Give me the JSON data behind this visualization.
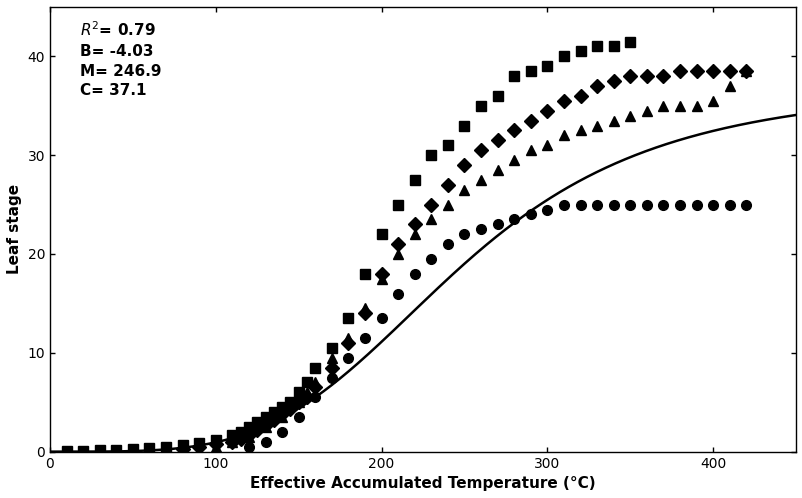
{
  "title": "",
  "xlabel": "Effective Accumulated Temperature (°C)",
  "ylabel": "Leaf stage",
  "xlim": [
    0,
    450
  ],
  "ylim": [
    0,
    45
  ],
  "xticks": [
    0,
    100,
    200,
    300,
    400
  ],
  "yticks": [
    0,
    10,
    20,
    30,
    40
  ],
  "logistic_params": {
    "C": 37.1,
    "B": -4.03,
    "M": 246.9
  },
  "series_june6_sq": {
    "marker": "s",
    "x": [
      10,
      20,
      30,
      40,
      50,
      60,
      70,
      80,
      90,
      100,
      110,
      115,
      120,
      125,
      130,
      135,
      140,
      145,
      150,
      155,
      160,
      170,
      180,
      190,
      200,
      210,
      220,
      230,
      240,
      250,
      260,
      270,
      280,
      290,
      300,
      310,
      320,
      330,
      340,
      350
    ],
    "y": [
      0.05,
      0.1,
      0.15,
      0.2,
      0.3,
      0.4,
      0.5,
      0.7,
      0.9,
      1.2,
      1.7,
      2.0,
      2.5,
      3.0,
      3.5,
      4.0,
      4.5,
      5.0,
      6.0,
      7.0,
      8.5,
      10.5,
      13.5,
      18.0,
      22.0,
      25.0,
      27.5,
      30.0,
      31.0,
      33.0,
      35.0,
      36.0,
      38.0,
      38.5,
      39.0,
      40.0,
      40.5,
      41.0,
      41.0,
      41.5
    ]
  },
  "series_june13_di": {
    "marker": "D",
    "x": [
      80,
      90,
      100,
      110,
      115,
      120,
      125,
      130,
      135,
      140,
      145,
      150,
      155,
      160,
      170,
      180,
      190,
      200,
      210,
      220,
      230,
      240,
      250,
      260,
      270,
      280,
      290,
      300,
      310,
      320,
      330,
      340,
      350,
      360,
      370,
      380,
      390,
      400,
      410,
      420
    ],
    "y": [
      0.3,
      0.5,
      0.8,
      1.0,
      1.3,
      1.7,
      2.2,
      2.7,
      3.2,
      3.8,
      4.3,
      5.0,
      5.5,
      6.5,
      8.5,
      11.0,
      14.0,
      18.0,
      21.0,
      23.0,
      25.0,
      27.0,
      29.0,
      30.5,
      31.5,
      32.5,
      33.5,
      34.5,
      35.5,
      36.0,
      37.0,
      37.5,
      38.0,
      38.0,
      38.0,
      38.5,
      38.5,
      38.5,
      38.5,
      38.5
    ]
  },
  "series_june20_tr": {
    "marker": "^",
    "x": [
      100,
      110,
      120,
      130,
      140,
      150,
      155,
      160,
      170,
      180,
      190,
      200,
      210,
      220,
      230,
      240,
      250,
      260,
      270,
      280,
      290,
      300,
      310,
      320,
      330,
      340,
      350,
      360,
      370,
      380,
      390,
      400,
      410,
      420
    ],
    "y": [
      0.5,
      1.0,
      1.5,
      2.5,
      3.5,
      5.0,
      6.0,
      7.0,
      9.5,
      11.5,
      14.5,
      17.5,
      20.0,
      22.0,
      23.5,
      25.0,
      26.5,
      27.5,
      28.5,
      29.5,
      30.5,
      31.0,
      32.0,
      32.5,
      33.0,
      33.5,
      34.0,
      34.5,
      35.0,
      35.0,
      35.0,
      35.5,
      37.0,
      38.5
    ]
  },
  "series_june27_ci": {
    "marker": "o",
    "x": [
      120,
      130,
      140,
      150,
      160,
      170,
      180,
      190,
      200,
      210,
      220,
      230,
      240,
      250,
      260,
      270,
      280,
      290,
      300,
      310,
      320,
      330,
      340,
      350,
      360,
      370,
      380,
      390,
      400,
      410,
      420
    ],
    "y": [
      0.5,
      1.0,
      2.0,
      3.5,
      5.5,
      7.5,
      9.5,
      11.5,
      13.5,
      16.0,
      18.0,
      19.5,
      21.0,
      22.0,
      22.5,
      23.0,
      23.5,
      24.0,
      24.5,
      25.0,
      25.0,
      25.0,
      25.0,
      25.0,
      25.0,
      25.0,
      25.0,
      25.0,
      25.0,
      25.0,
      25.0
    ]
  },
  "marker_size": 7,
  "line_color": "black",
  "marker_color": "black",
  "background_color": "white",
  "figsize": [
    8.03,
    4.98
  ],
  "dpi": 100
}
